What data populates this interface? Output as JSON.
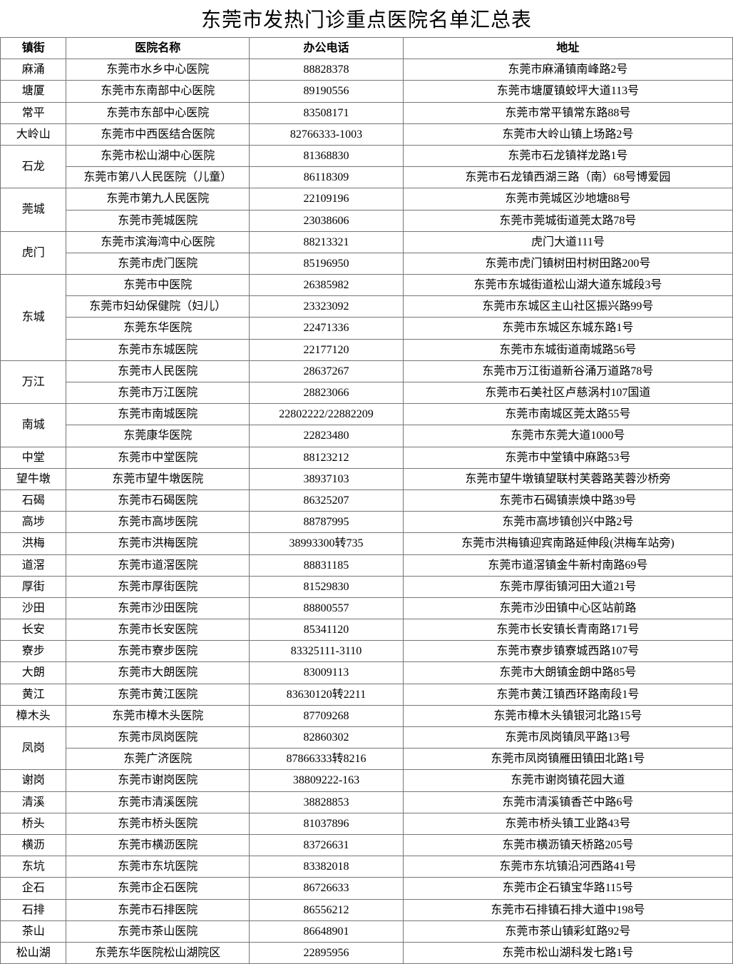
{
  "title": "东莞市发热门诊重点医院名单汇总表",
  "columns": [
    "镇街",
    "医院名称",
    "办公电话",
    "地址"
  ],
  "col_widths": [
    "9%",
    "25%",
    "21%",
    "45%"
  ],
  "groups": [
    {
      "town": "麻涌",
      "rows": [
        {
          "hospital": "东莞市水乡中心医院",
          "phone": "88828378",
          "address": "东莞市麻涌镇南峰路2号"
        }
      ]
    },
    {
      "town": "塘厦",
      "rows": [
        {
          "hospital": "东莞市东南部中心医院",
          "phone": "89190556",
          "address": "东莞市塘厦镇蛟坪大道113号"
        }
      ]
    },
    {
      "town": "常平",
      "rows": [
        {
          "hospital": "东莞市东部中心医院",
          "phone": "83508171",
          "address": "东莞市常平镇常东路88号"
        }
      ]
    },
    {
      "town": "大岭山",
      "rows": [
        {
          "hospital": "东莞市中西医结合医院",
          "phone": "82766333-1003",
          "address": "东莞市大岭山镇上场路2号"
        }
      ]
    },
    {
      "town": "石龙",
      "rows": [
        {
          "hospital": "东莞市松山湖中心医院",
          "phone": "81368830",
          "address": "东莞市石龙镇祥龙路1号"
        },
        {
          "hospital": "东莞市第八人民医院（儿童）",
          "phone": "86118309",
          "address": "东莞市石龙镇西湖三路（南）68号博爱园"
        }
      ]
    },
    {
      "town": "莞城",
      "rows": [
        {
          "hospital": "东莞市第九人民医院",
          "phone": "22109196",
          "address": "东莞市莞城区沙地塘88号"
        },
        {
          "hospital": "东莞市莞城医院",
          "phone": "23038606",
          "address": "东莞市莞城街道莞太路78号"
        }
      ]
    },
    {
      "town": "虎门",
      "rows": [
        {
          "hospital": "东莞市滨海湾中心医院",
          "phone": "88213321",
          "address": "虎门大道111号"
        },
        {
          "hospital": "东莞市虎门医院",
          "phone": "85196950",
          "address": "东莞市虎门镇树田村树田路200号"
        }
      ]
    },
    {
      "town": "东城",
      "rows": [
        {
          "hospital": "东莞市中医院",
          "phone": "26385982",
          "address": "东莞市东城街道松山湖大道东城段3号"
        },
        {
          "hospital": "东莞市妇幼保健院（妇儿）",
          "phone": "23323092",
          "address": "东莞市东城区主山社区振兴路99号"
        },
        {
          "hospital": "东莞东华医院",
          "phone": "22471336",
          "address": "东莞市东城区东城东路1号"
        },
        {
          "hospital": "东莞市东城医院",
          "phone": "22177120",
          "address": "东莞市东城街道南城路56号"
        }
      ]
    },
    {
      "town": "万江",
      "rows": [
        {
          "hospital": "东莞市人民医院",
          "phone": "28637267",
          "address": "东莞市万江街道新谷涌万道路78号"
        },
        {
          "hospital": "东莞市万江医院",
          "phone": "28823066",
          "address": "东莞市石美社区卢慈涡村107国道"
        }
      ]
    },
    {
      "town": "南城",
      "rows": [
        {
          "hospital": "东莞市南城医院",
          "phone": "22802222/22882209",
          "address": "东莞市南城区莞太路55号"
        },
        {
          "hospital": "东莞康华医院",
          "phone": "22823480",
          "address": "东莞市东莞大道1000号"
        }
      ]
    },
    {
      "town": "中堂",
      "rows": [
        {
          "hospital": "东莞市中堂医院",
          "phone": "88123212",
          "address": "东莞市中堂镇中麻路53号"
        }
      ]
    },
    {
      "town": "望牛墩",
      "rows": [
        {
          "hospital": "东莞市望牛墩医院",
          "phone": "38937103",
          "address": "东莞市望牛墩镇望联村芙蓉路芙蓉沙桥旁"
        }
      ]
    },
    {
      "town": "石碣",
      "rows": [
        {
          "hospital": "东莞市石碣医院",
          "phone": "86325207",
          "address": "东莞市石碣镇崇焕中路39号"
        }
      ]
    },
    {
      "town": "高埗",
      "rows": [
        {
          "hospital": "东莞市高埗医院",
          "phone": "88787995",
          "address": "东莞市高埗镇创兴中路2号"
        }
      ]
    },
    {
      "town": "洪梅",
      "rows": [
        {
          "hospital": "东莞市洪梅医院",
          "phone": "38993300转735",
          "address": "东莞市洪梅镇迎宾南路延伸段(洪梅车站旁)"
        }
      ]
    },
    {
      "town": "道滘",
      "rows": [
        {
          "hospital": "东莞市道滘医院",
          "phone": "88831185",
          "address": "东莞市道滘镇金牛新村南路69号"
        }
      ]
    },
    {
      "town": "厚街",
      "rows": [
        {
          "hospital": "东莞市厚街医院",
          "phone": "81529830",
          "address": "东莞市厚街镇河田大道21号"
        }
      ]
    },
    {
      "town": "沙田",
      "rows": [
        {
          "hospital": "东莞市沙田医院",
          "phone": "88800557",
          "address": "东莞市沙田镇中心区站前路"
        }
      ]
    },
    {
      "town": "长安",
      "rows": [
        {
          "hospital": "东莞市长安医院",
          "phone": "85341120",
          "address": "东莞市长安镇长青南路171号"
        }
      ]
    },
    {
      "town": "寮步",
      "rows": [
        {
          "hospital": "东莞市寮步医院",
          "phone": "83325111-3110",
          "address": "东莞市寮步镇寮城西路107号"
        }
      ]
    },
    {
      "town": "大朗",
      "rows": [
        {
          "hospital": "东莞市大朗医院",
          "phone": "83009113",
          "address": "东莞市大朗镇金朗中路85号"
        }
      ]
    },
    {
      "town": "黄江",
      "rows": [
        {
          "hospital": "东莞市黄江医院",
          "phone": "83630120转2211",
          "address": "东莞市黄江镇西环路南段1号"
        }
      ]
    },
    {
      "town": "樟木头",
      "rows": [
        {
          "hospital": "东莞市樟木头医院",
          "phone": "87709268",
          "address": "东莞市樟木头镇银河北路15号"
        }
      ]
    },
    {
      "town": "凤岗",
      "rows": [
        {
          "hospital": "东莞市凤岗医院",
          "phone": "82860302",
          "address": "东莞市凤岗镇凤平路13号"
        },
        {
          "hospital": "东莞广济医院",
          "phone": "87866333转8216",
          "address": "东莞市凤岗镇雁田镇田北路1号"
        }
      ]
    },
    {
      "town": "谢岗",
      "rows": [
        {
          "hospital": "东莞市谢岗医院",
          "phone": "38809222-163",
          "address": "东莞市谢岗镇花园大道"
        }
      ]
    },
    {
      "town": "清溪",
      "rows": [
        {
          "hospital": "东莞市清溪医院",
          "phone": "38828853",
          "address": "东莞市清溪镇香芒中路6号"
        }
      ]
    },
    {
      "town": "桥头",
      "rows": [
        {
          "hospital": "东莞市桥头医院",
          "phone": "81037896",
          "address": "东莞市桥头镇工业路43号"
        }
      ]
    },
    {
      "town": "横沥",
      "rows": [
        {
          "hospital": "东莞市横沥医院",
          "phone": "83726631",
          "address": "东莞市横沥镇天桥路205号"
        }
      ]
    },
    {
      "town": "东坑",
      "rows": [
        {
          "hospital": "东莞市东坑医院",
          "phone": "83382018",
          "address": "东莞市东坑镇沿河西路41号"
        }
      ]
    },
    {
      "town": "企石",
      "rows": [
        {
          "hospital": "东莞市企石医院",
          "phone": "86726633",
          "address": "东莞市企石镇宝华路115号"
        }
      ]
    },
    {
      "town": "石排",
      "rows": [
        {
          "hospital": "东莞市石排医院",
          "phone": "86556212",
          "address": "东莞市石排镇石排大道中198号"
        }
      ]
    },
    {
      "town": "茶山",
      "rows": [
        {
          "hospital": "东莞市茶山医院",
          "phone": "86648901",
          "address": "东莞市茶山镇彩虹路92号"
        }
      ]
    },
    {
      "town": "松山湖",
      "rows": [
        {
          "hospital": "东莞东华医院松山湖院区",
          "phone": "22895956",
          "address": "东莞市松山湖科发七路1号"
        }
      ]
    }
  ]
}
